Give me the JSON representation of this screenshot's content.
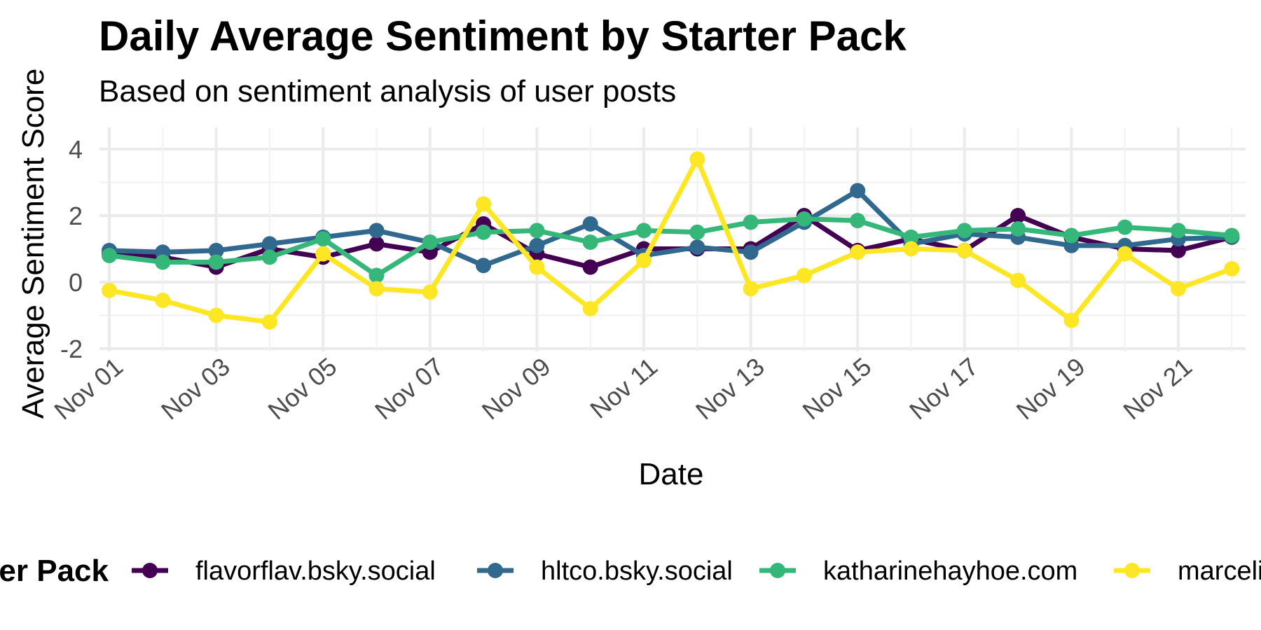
{
  "chart_data": {
    "type": "line",
    "title": "Daily Average Sentiment by Starter Pack",
    "subtitle": "Based on sentiment analysis of user posts",
    "xlabel": "Date",
    "ylabel": "Average Sentiment Score",
    "x": [
      "Nov 01",
      "Nov 02",
      "Nov 03",
      "Nov 04",
      "Nov 05",
      "Nov 06",
      "Nov 07",
      "Nov 08",
      "Nov 09",
      "Nov 10",
      "Nov 11",
      "Nov 12",
      "Nov 13",
      "Nov 14",
      "Nov 15",
      "Nov 16",
      "Nov 17",
      "Nov 18",
      "Nov 19",
      "Nov 20",
      "Nov 21",
      "Nov 22"
    ],
    "x_tick_labels": [
      "Nov 01",
      "Nov 03",
      "Nov 05",
      "Nov 07",
      "Nov 09",
      "Nov 11",
      "Nov 13",
      "Nov 15",
      "Nov 17",
      "Nov 19",
      "Nov 21"
    ],
    "y_ticks": [
      -2,
      0,
      2,
      4
    ],
    "ylim": [
      -2,
      4.5
    ],
    "grid": true,
    "legend": {
      "title": "Starter Pack",
      "position": "bottom"
    },
    "series": [
      {
        "name": "flavorflav.bsky.social",
        "color": "#440154",
        "values": [
          0.85,
          0.75,
          0.45,
          1.0,
          0.75,
          1.15,
          0.9,
          1.75,
          0.85,
          0.45,
          1.0,
          1.0,
          1.0,
          2.0,
          0.95,
          1.3,
          0.95,
          2.0,
          1.35,
          1.0,
          0.95,
          1.35
        ]
      },
      {
        "name": "hltco.bsky.social",
        "color": "#31688E",
        "values": [
          0.95,
          0.9,
          0.95,
          1.15,
          1.35,
          1.55,
          1.2,
          0.5,
          1.1,
          1.75,
          0.8,
          1.05,
          0.9,
          1.8,
          2.75,
          1.15,
          1.45,
          1.35,
          1.1,
          1.1,
          1.3,
          1.35
        ]
      },
      {
        "name": "katharinehayhoe.com",
        "color": "#35B779",
        "values": [
          0.8,
          0.6,
          0.6,
          0.75,
          1.3,
          0.2,
          1.2,
          1.5,
          1.55,
          1.2,
          1.55,
          1.5,
          1.8,
          1.9,
          1.85,
          1.35,
          1.55,
          1.6,
          1.4,
          1.65,
          1.55,
          1.4
        ]
      },
      {
        "name": "marcelinewall.bsky.social",
        "color": "#FDE725",
        "values": [
          -0.25,
          -0.55,
          -1.0,
          -1.2,
          0.85,
          -0.2,
          -0.3,
          2.35,
          0.45,
          -0.8,
          0.65,
          3.7,
          -0.2,
          0.2,
          0.9,
          1.0,
          0.95,
          0.05,
          -1.15,
          0.85,
          -0.2,
          0.4
        ]
      }
    ]
  }
}
